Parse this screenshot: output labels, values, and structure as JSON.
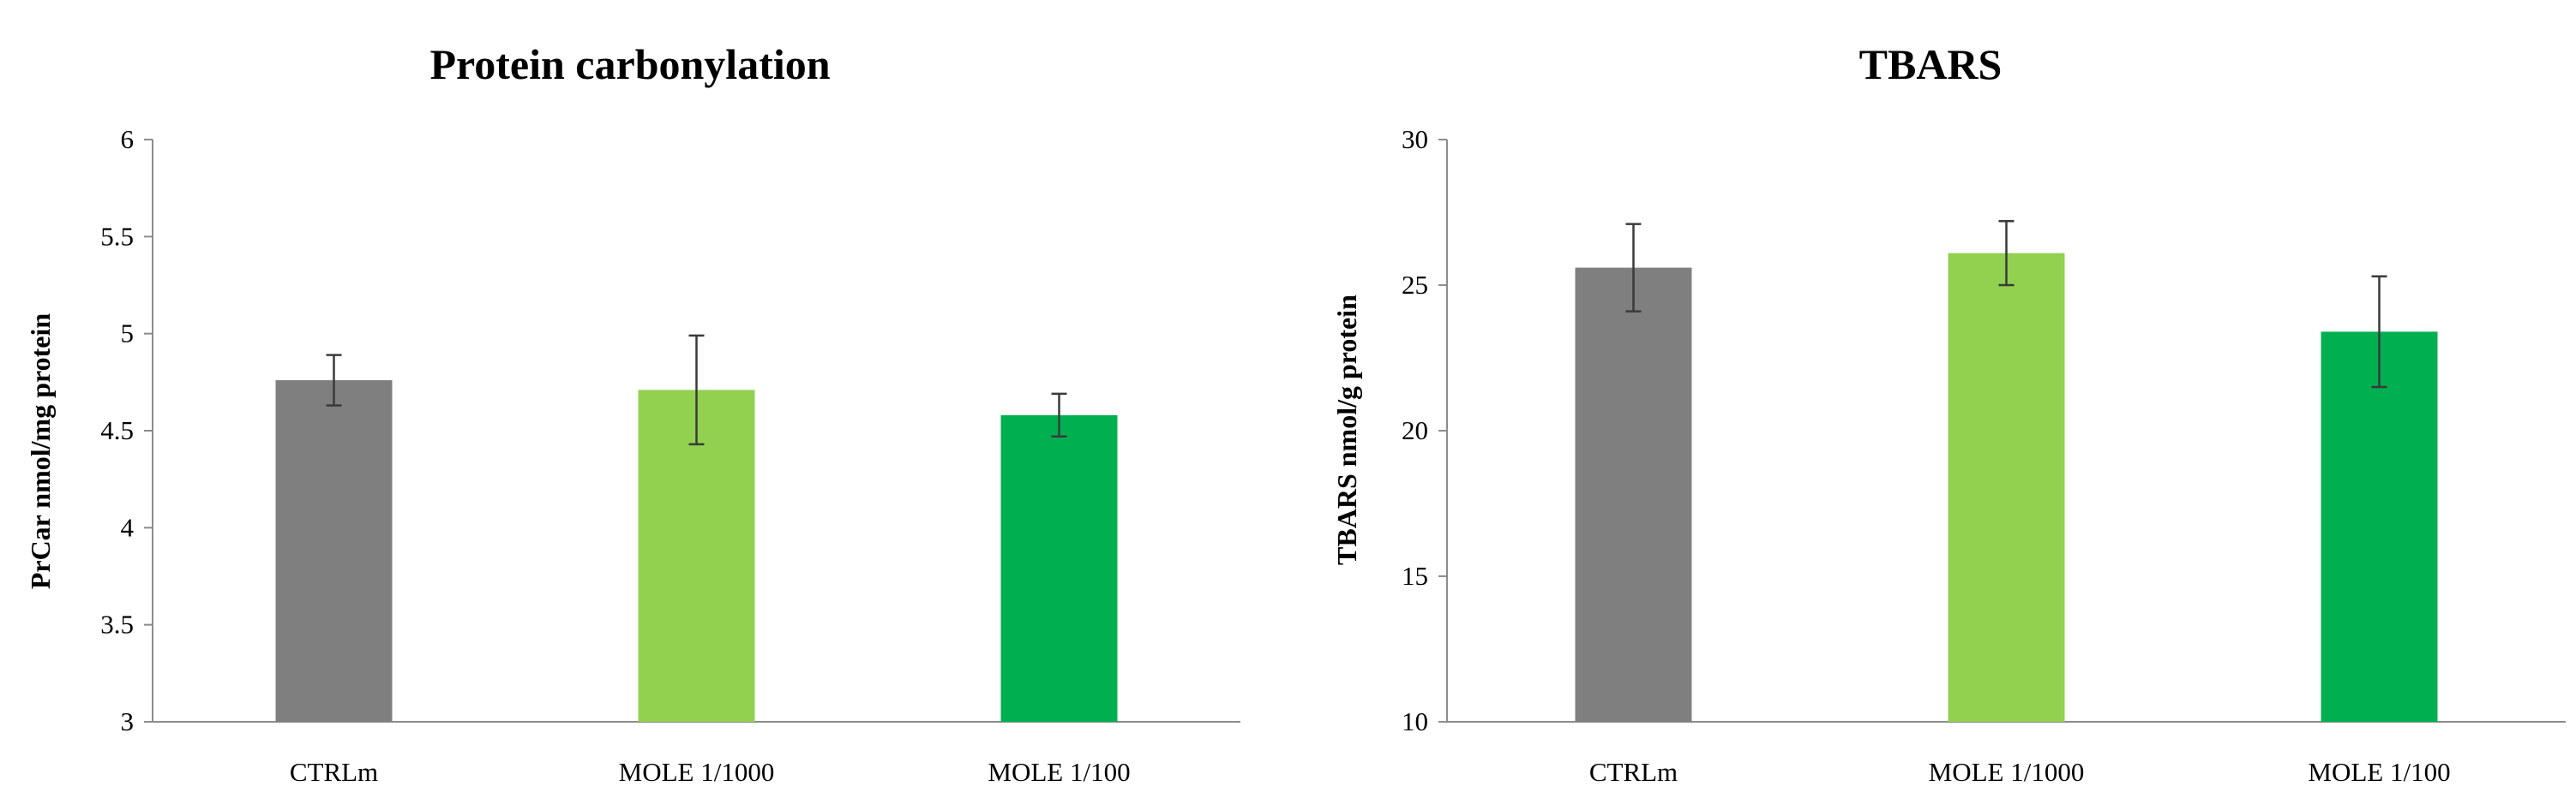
{
  "chart_data": [
    {
      "type": "bar",
      "title": "Protein carbonylation",
      "xlabel": "",
      "ylabel": "PrCar nmol/mg protein",
      "ylim": [
        3,
        6
      ],
      "yticks": [
        3,
        3.5,
        4,
        4.5,
        5,
        5.5,
        6
      ],
      "ytick_labels": [
        "3",
        "3.5",
        "4",
        "4.5",
        "5",
        "5.5",
        "6"
      ],
      "grid": false,
      "categories": [
        "CTRLm",
        "MOLE 1/1000",
        "MOLE 1/100"
      ],
      "values": [
        4.76,
        4.71,
        4.58
      ],
      "errors": [
        0.13,
        0.28,
        0.11
      ],
      "colors": [
        "#7f7f7f",
        "#92d050",
        "#00b050"
      ]
    },
    {
      "type": "bar",
      "title": "TBARS",
      "xlabel": "",
      "ylabel": "TBARS  nmol/g protein",
      "ylim": [
        10,
        30
      ],
      "yticks": [
        10,
        15,
        20,
        25,
        30
      ],
      "ytick_labels": [
        "10",
        "15",
        "20",
        "25",
        "30"
      ],
      "grid": false,
      "categories": [
        "CTRLm",
        "MOLE 1/1000",
        "MOLE 1/100"
      ],
      "values": [
        25.6,
        26.1,
        23.4
      ],
      "errors": [
        1.5,
        1.1,
        1.9
      ],
      "colors": [
        "#7f7f7f",
        "#92d050",
        "#00b050"
      ]
    }
  ]
}
